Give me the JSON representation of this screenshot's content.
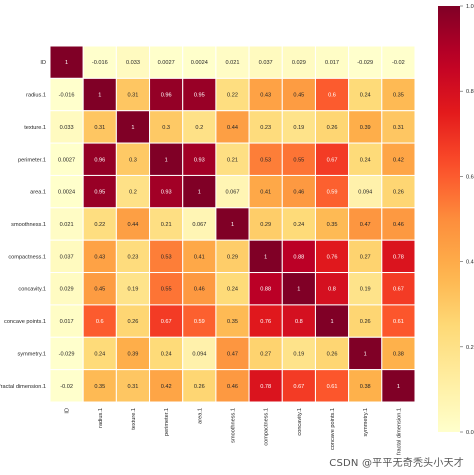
{
  "chart_data": {
    "type": "heatmap",
    "title": "",
    "xlabel": "",
    "ylabel": "",
    "row_labels": [
      "ID",
      "radius.1",
      "texture.1",
      "perimeter.1",
      "area.1",
      "smoothness.1",
      "compactness.1",
      "concavity.1",
      "concave points.1",
      "symmetry.1",
      "fractal dimension.1"
    ],
    "col_labels": [
      "ID",
      "radius.1",
      "texture.1",
      "perimeter.1",
      "area.1",
      "smoothness.1",
      "compactness.1",
      "concavity.1",
      "concave points.1",
      "symmetry.1",
      "fractal dimension.1"
    ],
    "values": [
      [
        1,
        -0.016,
        0.033,
        0.0027,
        0.0024,
        0.021,
        0.037,
        0.029,
        0.017,
        -0.029,
        -0.02
      ],
      [
        -0.016,
        1,
        0.31,
        0.96,
        0.95,
        0.22,
        0.43,
        0.45,
        0.6,
        0.24,
        0.35
      ],
      [
        0.033,
        0.31,
        1,
        0.3,
        0.2,
        0.44,
        0.23,
        0.19,
        0.26,
        0.39,
        0.31
      ],
      [
        0.0027,
        0.96,
        0.3,
        1,
        0.93,
        0.21,
        0.53,
        0.55,
        0.67,
        0.24,
        0.42
      ],
      [
        0.0024,
        0.95,
        0.2,
        0.93,
        1,
        0.067,
        0.41,
        0.46,
        0.59,
        0.094,
        0.26
      ],
      [
        0.021,
        0.22,
        0.44,
        0.21,
        0.067,
        1,
        0.29,
        0.24,
        0.35,
        0.47,
        0.46
      ],
      [
        0.037,
        0.43,
        0.23,
        0.53,
        0.41,
        0.29,
        1,
        0.88,
        0.76,
        0.27,
        0.78
      ],
      [
        0.029,
        0.45,
        0.19,
        0.55,
        0.46,
        0.24,
        0.88,
        1,
        0.8,
        0.19,
        0.67
      ],
      [
        0.017,
        0.6,
        0.26,
        0.67,
        0.59,
        0.35,
        0.76,
        0.8,
        1,
        0.26,
        0.61
      ],
      [
        -0.029,
        0.24,
        0.39,
        0.24,
        0.094,
        0.47,
        0.27,
        0.19,
        0.26,
        1,
        0.38
      ],
      [
        -0.02,
        0.35,
        0.31,
        0.42,
        0.26,
        0.46,
        0.78,
        0.67,
        0.61,
        0.38,
        1
      ]
    ],
    "colorbar": {
      "colormap": "YlOrRd",
      "range": [
        0,
        1
      ],
      "ticks": [
        "0.0",
        "0.2",
        "0.4",
        "0.6",
        "0.8",
        "1.0"
      ]
    },
    "grid": "white cell borders",
    "legend": "colorbar right"
  },
  "watermark": "CSDN @平平无奇秃头小天才"
}
